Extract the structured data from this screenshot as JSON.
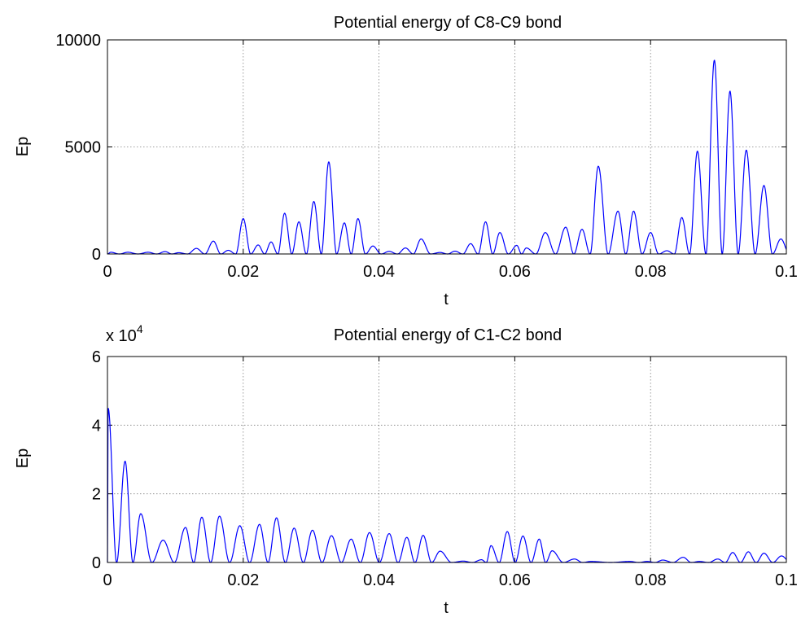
{
  "colors": {
    "series": "#0000ff",
    "axes": "#000000",
    "grid": "#808080",
    "background": "#ffffff"
  },
  "chart_data": [
    {
      "type": "line",
      "title": "Potential energy of C8-C9 bond",
      "xlabel": "t",
      "ylabel": "Ep",
      "xlim": [
        0,
        0.1
      ],
      "ylim": [
        0,
        10000
      ],
      "xticks": [
        0,
        0.02,
        0.04,
        0.06,
        0.08,
        0.1
      ],
      "xtick_labels": [
        "0",
        "0.02",
        "0.04",
        "0.06",
        "0.08",
        "0.1"
      ],
      "yticks": [
        0,
        5000,
        10000
      ],
      "ytick_labels": [
        "0",
        "5000",
        "10000"
      ],
      "exponent_label": "",
      "grid": true,
      "series": [
        {
          "peaks": [
            [
              0.0005,
              80
            ],
            [
              0.003,
              80
            ],
            [
              0.006,
              80
            ],
            [
              0.0085,
              110
            ],
            [
              0.0105,
              60
            ],
            [
              0.0131,
              260
            ],
            [
              0.0156,
              600
            ],
            [
              0.0178,
              170
            ],
            [
              0.02,
              1650
            ],
            [
              0.0222,
              420
            ],
            [
              0.0241,
              560
            ],
            [
              0.0261,
              1900
            ],
            [
              0.0282,
              1500
            ],
            [
              0.0304,
              2450
            ],
            [
              0.0326,
              4300
            ],
            [
              0.0349,
              1450
            ],
            [
              0.0369,
              1650
            ],
            [
              0.0391,
              370
            ],
            [
              0.0415,
              120
            ],
            [
              0.0439,
              280
            ],
            [
              0.0462,
              700
            ],
            [
              0.049,
              70
            ],
            [
              0.0512,
              130
            ],
            [
              0.0535,
              480
            ],
            [
              0.0557,
              1500
            ],
            [
              0.0578,
              1000
            ],
            [
              0.0603,
              400
            ],
            [
              0.0617,
              280
            ],
            [
              0.0645,
              1000
            ],
            [
              0.0675,
              1250
            ],
            [
              0.0699,
              1150
            ],
            [
              0.0723,
              4100
            ],
            [
              0.0752,
              2000
            ],
            [
              0.0775,
              2000
            ],
            [
              0.08,
              1000
            ],
            [
              0.0824,
              150
            ],
            [
              0.0846,
              1700
            ],
            [
              0.0869,
              4800
            ],
            [
              0.0894,
              9050
            ],
            [
              0.0917,
              7600
            ],
            [
              0.0941,
              4850
            ],
            [
              0.0967,
              3200
            ],
            [
              0.0992,
              700
            ]
          ]
        }
      ]
    },
    {
      "type": "line",
      "title": "Potential energy of C1-C2 bond",
      "xlabel": "t",
      "ylabel": "Ep",
      "xlim": [
        0,
        0.1
      ],
      "ylim": [
        0,
        60000
      ],
      "xticks": [
        0,
        0.02,
        0.04,
        0.06,
        0.08,
        0.1
      ],
      "xtick_labels": [
        "0",
        "0.02",
        "0.04",
        "0.06",
        "0.08",
        "0.1"
      ],
      "yticks": [
        0,
        20000,
        40000,
        60000
      ],
      "ytick_labels": [
        "0",
        "2",
        "4",
        "6"
      ],
      "exponent_label": "x 10",
      "exponent_power": "4",
      "grid": true,
      "series": [
        {
          "peaks": [
            [
              0.0001,
              45000
            ],
            [
              0.0026,
              29500
            ],
            [
              0.0049,
              14200
            ],
            [
              0.0082,
              6500
            ],
            [
              0.0115,
              10200
            ],
            [
              0.0139,
              13200
            ],
            [
              0.0165,
              13500
            ],
            [
              0.0195,
              10700
            ],
            [
              0.0224,
              11100
            ],
            [
              0.0249,
              13000
            ],
            [
              0.0275,
              10000
            ],
            [
              0.0302,
              9400
            ],
            [
              0.033,
              7800
            ],
            [
              0.0359,
              6800
            ],
            [
              0.0386,
              8700
            ],
            [
              0.0415,
              8400
            ],
            [
              0.0441,
              7300
            ],
            [
              0.0465,
              7900
            ],
            [
              0.049,
              3300
            ],
            [
              0.0524,
              400
            ],
            [
              0.0551,
              800
            ],
            [
              0.0565,
              4900
            ],
            [
              0.0589,
              9000
            ],
            [
              0.0612,
              7700
            ],
            [
              0.0636,
              6800
            ],
            [
              0.0655,
              3400
            ],
            [
              0.0688,
              1000
            ],
            [
              0.0712,
              300
            ],
            [
              0.077,
              300
            ],
            [
              0.0795,
              300
            ],
            [
              0.0818,
              700
            ],
            [
              0.0848,
              1500
            ],
            [
              0.0872,
              300
            ],
            [
              0.0899,
              1000
            ],
            [
              0.0921,
              2900
            ],
            [
              0.0944,
              3100
            ],
            [
              0.0967,
              2700
            ],
            [
              0.0993,
              1900
            ]
          ]
        }
      ]
    }
  ]
}
